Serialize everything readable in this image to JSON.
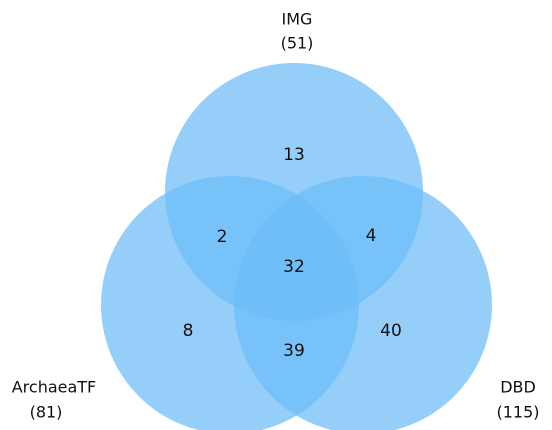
{
  "sets": {
    "img": {
      "name": "IMG",
      "count": "(51)"
    },
    "archaea": {
      "name": "ArchaeaTF",
      "count": "(81)"
    },
    "dbd": {
      "name": "DBD",
      "count": "(115)"
    }
  },
  "regions": {
    "img_only": "13",
    "img_archaea": "2",
    "img_dbd": "4",
    "all_three": "32",
    "archaea_only": "8",
    "archaea_dbd": "39",
    "dbd_only": "40"
  },
  "colors": {
    "circle_fill": "#6cbcf7",
    "text": "#111111"
  }
}
